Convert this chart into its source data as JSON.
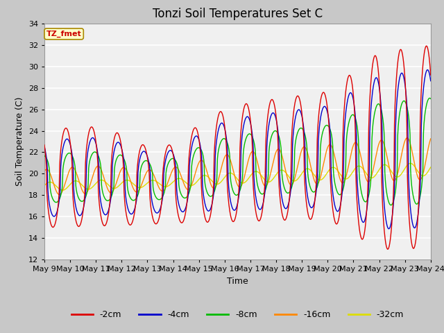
{
  "title": "Tonzi Soil Temperatures Set C",
  "xlabel": "Time",
  "ylabel": "Soil Temperature (C)",
  "ylim": [
    12,
    34
  ],
  "yticks": [
    12,
    14,
    16,
    18,
    20,
    22,
    24,
    26,
    28,
    30,
    32,
    34
  ],
  "xtick_labels": [
    "May 9",
    "May 10",
    "May 11",
    "May 12",
    "May 13",
    "May 14",
    "May 15",
    "May 16",
    "May 17",
    "May 18",
    "May 19",
    "May 20",
    "May 21",
    "May 22",
    "May 23",
    "May 24"
  ],
  "annotation_text": "TZ_fmet",
  "annotation_bg": "#ffffcc",
  "annotation_border": "#aa8800",
  "line_colors": {
    "-2cm": "#dd0000",
    "-4cm": "#0000cc",
    "-8cm": "#00bb00",
    "-16cm": "#ff8800",
    "-32cm": "#dddd00"
  },
  "legend_labels": [
    "-2cm",
    "-4cm",
    "-8cm",
    "-16cm",
    "-32cm"
  ],
  "fig_bg": "#c8c8c8",
  "plot_bg": "#f0f0f0",
  "grid_color": "#ffffff",
  "title_fontsize": 12,
  "label_fontsize": 9,
  "tick_fontsize": 8
}
